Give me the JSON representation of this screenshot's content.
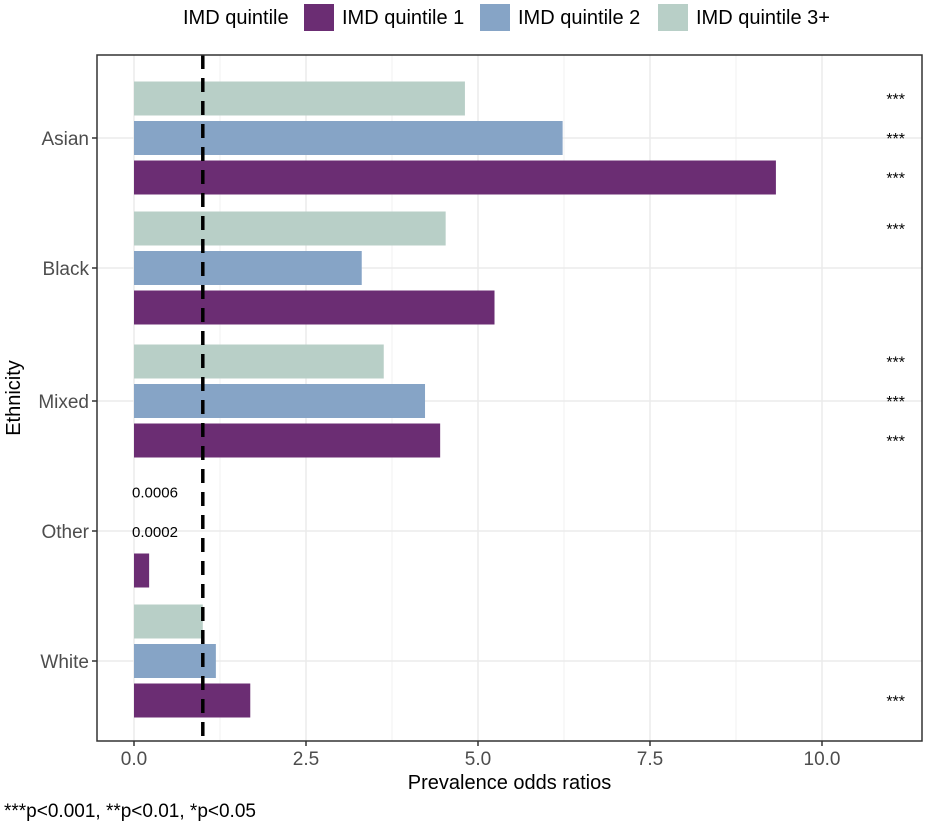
{
  "chart_data": {
    "type": "bar",
    "orientation": "horizontal",
    "title": "",
    "xlabel": "Prevalence odds ratios",
    "ylabel": "Ethnicity",
    "xlim": [
      -0.55,
      11.3
    ],
    "x_ticks": [
      0,
      2.5,
      5,
      7.5,
      10
    ],
    "x_tick_labels": [
      "0.0",
      "2.5",
      "5.0",
      "7.5",
      "10.0"
    ],
    "reference_line": 1,
    "grid": true,
    "legend_position": "top",
    "legend_title": "IMD quintile",
    "categories": [
      "Asian",
      "Black",
      "Mixed",
      "Other",
      "White"
    ],
    "series": [
      {
        "name": "IMD quintile 1",
        "color": "#6b2d73",
        "values": [
          9.33,
          5.24,
          4.45,
          0.22,
          1.69
        ],
        "significance": [
          "***",
          "",
          "***",
          "",
          "***"
        ],
        "value_labels": [
          "",
          "",
          "",
          "",
          ""
        ]
      },
      {
        "name": "IMD quintile 2",
        "color": "#86a4c6",
        "values": [
          6.23,
          3.31,
          4.23,
          0.0002,
          1.19
        ],
        "significance": [
          "***",
          "",
          "***",
          "",
          ""
        ],
        "value_labels": [
          "",
          "",
          "",
          "0.0002",
          ""
        ]
      },
      {
        "name": "IMD quintile 3+",
        "color": "#b8cfc7",
        "values": [
          4.81,
          4.53,
          3.63,
          0.0006,
          1.0
        ],
        "significance": [
          "***",
          "***",
          "***",
          "",
          ""
        ],
        "value_labels": [
          "",
          "",
          "",
          "0.0006",
          ""
        ]
      }
    ],
    "footnote": "***p<0.001, **p<0.01, *p<0.05"
  }
}
